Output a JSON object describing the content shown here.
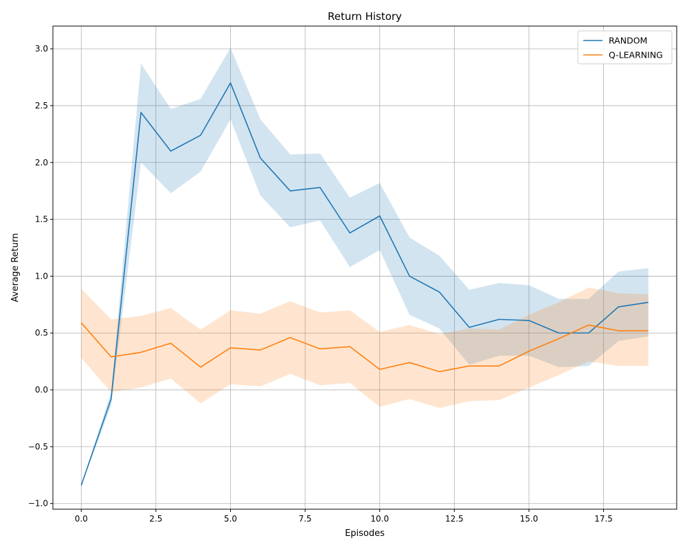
{
  "chart_data": {
    "type": "line",
    "title": "Return History",
    "xlabel": "Episodes",
    "ylabel": "Average Return",
    "xlim": [
      -0.95,
      19.95
    ],
    "ylim": [
      -1.05,
      3.2
    ],
    "xticks": [
      0.0,
      2.5,
      5.0,
      7.5,
      10.0,
      12.5,
      15.0,
      17.5
    ],
    "xtick_labels": [
      "0.0",
      "2.5",
      "5.0",
      "7.5",
      "10.0",
      "12.5",
      "15.0",
      "17.5"
    ],
    "yticks": [
      -1.0,
      -0.5,
      0.0,
      0.5,
      1.0,
      1.5,
      2.0,
      2.5,
      3.0
    ],
    "ytick_labels": [
      "−1.0",
      "−0.5",
      "0.0",
      "0.5",
      "1.0",
      "1.5",
      "2.0",
      "2.5",
      "3.0"
    ],
    "grid": true,
    "legend_position": "top-right",
    "x": [
      0,
      1,
      2,
      3,
      4,
      5,
      6,
      7,
      8,
      9,
      10,
      11,
      12,
      13,
      14,
      15,
      16,
      17,
      18,
      19
    ],
    "series": [
      {
        "name": "RANDOM",
        "color": "#1f77b4",
        "values": [
          -0.84,
          -0.08,
          2.44,
          2.1,
          2.24,
          2.7,
          2.04,
          1.75,
          1.78,
          1.38,
          1.53,
          1.0,
          0.86,
          0.55,
          0.62,
          0.61,
          0.5,
          0.5,
          0.73,
          0.77
        ],
        "lower": [
          -0.84,
          -0.14,
          2.0,
          1.73,
          1.92,
          2.38,
          1.71,
          1.43,
          1.49,
          1.08,
          1.23,
          0.66,
          0.54,
          0.22,
          0.3,
          0.3,
          0.2,
          0.21,
          0.43,
          0.47
        ],
        "upper": [
          -0.84,
          -0.02,
          2.87,
          2.47,
          2.56,
          3.01,
          2.38,
          2.07,
          2.08,
          1.69,
          1.82,
          1.34,
          1.18,
          0.88,
          0.94,
          0.92,
          0.8,
          0.8,
          1.04,
          1.07
        ]
      },
      {
        "name": "Q-LEARNING",
        "color": "#ff7f0e",
        "values": [
          0.59,
          0.29,
          0.33,
          0.41,
          0.2,
          0.37,
          0.35,
          0.46,
          0.36,
          0.38,
          0.18,
          0.24,
          0.16,
          0.21,
          0.21,
          0.34,
          0.45,
          0.57,
          0.52,
          0.52
        ],
        "lower": [
          0.28,
          -0.02,
          0.02,
          0.1,
          -0.12,
          0.05,
          0.03,
          0.14,
          0.04,
          0.06,
          -0.15,
          -0.08,
          -0.16,
          -0.1,
          -0.09,
          0.02,
          0.13,
          0.25,
          0.21,
          0.21
        ],
        "upper": [
          0.89,
          0.62,
          0.65,
          0.72,
          0.53,
          0.7,
          0.67,
          0.78,
          0.68,
          0.7,
          0.51,
          0.57,
          0.49,
          0.54,
          0.53,
          0.66,
          0.77,
          0.9,
          0.85,
          0.84
        ]
      }
    ]
  }
}
